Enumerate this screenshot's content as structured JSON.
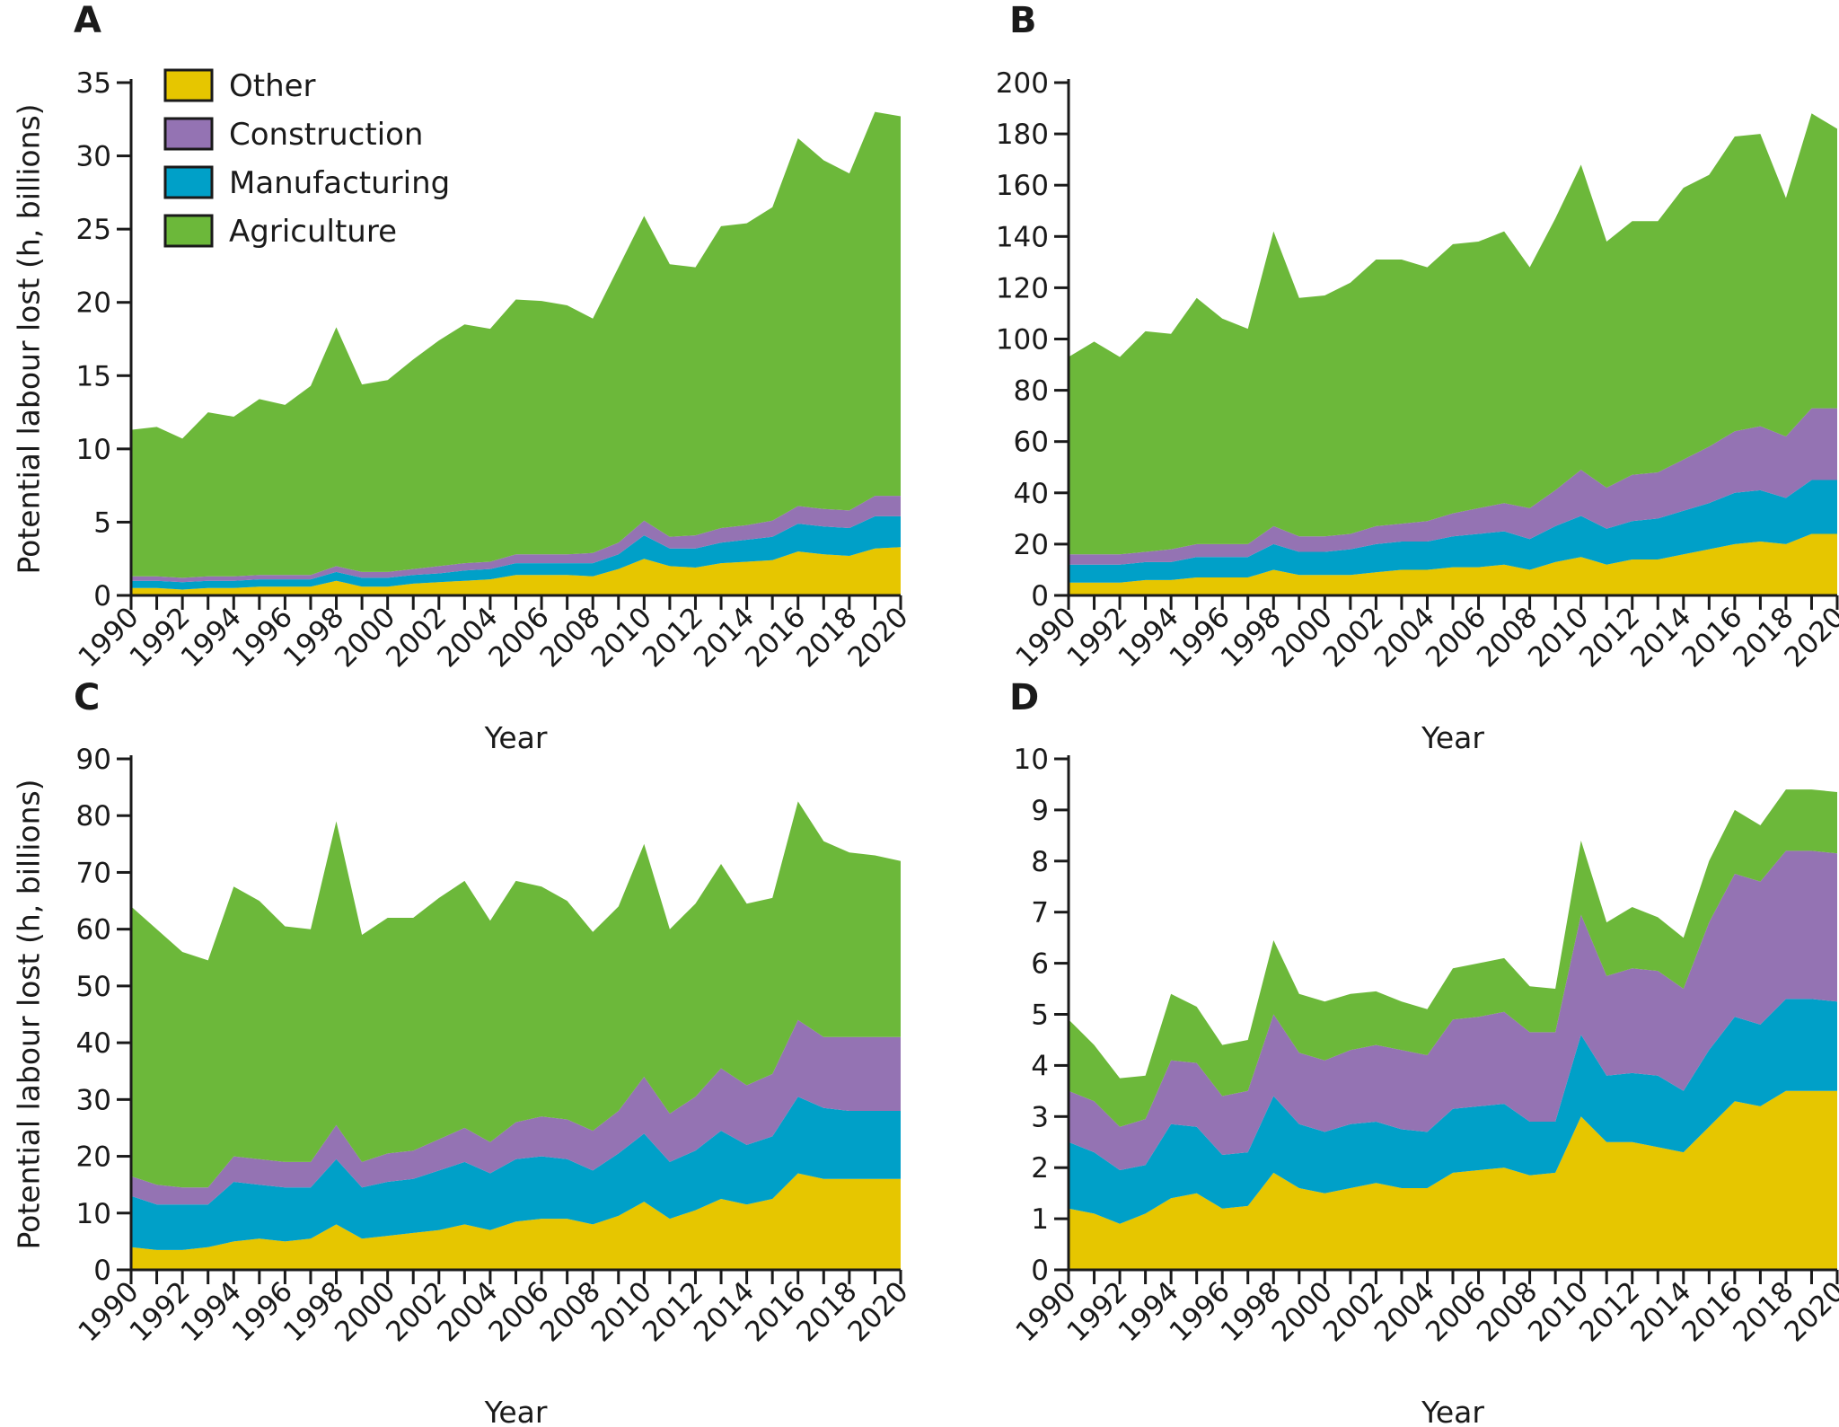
{
  "legend": [
    {
      "key": "other",
      "label": "Other",
      "color": "#e6c600"
    },
    {
      "key": "construction",
      "label": "Construction",
      "color": "#9473b3"
    },
    {
      "key": "manufacturing",
      "label": "Manufacturing",
      "color": "#00a0c8"
    },
    {
      "key": "agriculture",
      "label": "Agriculture",
      "color": "#6cb83a"
    }
  ],
  "xlabel": "Year",
  "ylabel": "Potential labour lost (h, billions)",
  "chart_data": [
    {
      "panel": "A",
      "type": "area",
      "stacked": true,
      "x": [
        1990,
        1991,
        1992,
        1993,
        1994,
        1995,
        1996,
        1997,
        1998,
        1999,
        2000,
        2001,
        2002,
        2003,
        2004,
        2005,
        2006,
        2007,
        2008,
        2009,
        2010,
        2011,
        2012,
        2013,
        2014,
        2015,
        2016,
        2017,
        2018,
        2019,
        2020
      ],
      "xticks": [
        "1990",
        "1992",
        "1994",
        "1996",
        "1998",
        "2000",
        "2002",
        "2004",
        "2006",
        "2008",
        "2010",
        "2012",
        "2014",
        "2016",
        "2018",
        "2020"
      ],
      "ylim": [
        0,
        35
      ],
      "yticks": [
        0,
        5,
        10,
        15,
        20,
        25,
        30,
        35
      ],
      "xlabel": "Year",
      "ylabel": "Potential labour lost (h, billions)",
      "series": [
        {
          "name": "Other",
          "values": [
            0.5,
            0.5,
            0.4,
            0.5,
            0.5,
            0.6,
            0.6,
            0.6,
            1.0,
            0.6,
            0.6,
            0.8,
            0.9,
            1.0,
            1.1,
            1.4,
            1.4,
            1.4,
            1.3,
            1.8,
            2.5,
            2.0,
            1.9,
            2.2,
            2.3,
            2.4,
            3.0,
            2.8,
            2.7,
            3.2,
            3.3
          ]
        },
        {
          "name": "Manufacturing",
          "values": [
            0.5,
            0.5,
            0.5,
            0.5,
            0.5,
            0.5,
            0.5,
            0.5,
            0.6,
            0.6,
            0.6,
            0.6,
            0.6,
            0.7,
            0.7,
            0.8,
            0.8,
            0.8,
            0.9,
            1.0,
            1.6,
            1.2,
            1.3,
            1.4,
            1.5,
            1.6,
            1.9,
            1.9,
            1.9,
            2.2,
            2.1
          ]
        },
        {
          "name": "Construction",
          "values": [
            0.3,
            0.3,
            0.3,
            0.3,
            0.3,
            0.3,
            0.3,
            0.3,
            0.4,
            0.4,
            0.4,
            0.4,
            0.5,
            0.5,
            0.5,
            0.6,
            0.6,
            0.6,
            0.7,
            0.8,
            1.0,
            0.8,
            0.9,
            1.0,
            1.0,
            1.1,
            1.2,
            1.2,
            1.2,
            1.4,
            1.4
          ]
        },
        {
          "name": "Agriculture",
          "values": [
            10.0,
            10.2,
            9.5,
            11.2,
            10.9,
            12.0,
            11.6,
            12.9,
            16.3,
            12.8,
            13.1,
            14.3,
            15.4,
            16.3,
            15.9,
            17.4,
            17.3,
            17.0,
            16.0,
            18.8,
            20.8,
            18.6,
            18.3,
            20.6,
            20.6,
            21.4,
            25.1,
            23.8,
            23.0,
            26.2,
            25.9
          ]
        }
      ]
    },
    {
      "panel": "B",
      "type": "area",
      "stacked": true,
      "x": [
        1990,
        1991,
        1992,
        1993,
        1994,
        1995,
        1996,
        1997,
        1998,
        1999,
        2000,
        2001,
        2002,
        2003,
        2004,
        2005,
        2006,
        2007,
        2008,
        2009,
        2010,
        2011,
        2012,
        2013,
        2014,
        2015,
        2016,
        2017,
        2018,
        2019,
        2020
      ],
      "xticks": [
        "1990",
        "1992",
        "1994",
        "1996",
        "1998",
        "2000",
        "2002",
        "2004",
        "2006",
        "2008",
        "2010",
        "2012",
        "2014",
        "2016",
        "2018",
        "2020"
      ],
      "ylim": [
        0,
        200
      ],
      "yticks": [
        0,
        20,
        40,
        60,
        80,
        100,
        120,
        140,
        160,
        180,
        200
      ],
      "xlabel": "Year",
      "ylabel": "",
      "series": [
        {
          "name": "Other",
          "values": [
            5,
            5,
            5,
            6,
            6,
            7,
            7,
            7,
            10,
            8,
            8,
            8,
            9,
            10,
            10,
            11,
            11,
            12,
            10,
            13,
            15,
            12,
            14,
            14,
            16,
            18,
            20,
            21,
            20,
            24,
            24
          ]
        },
        {
          "name": "Manufacturing",
          "values": [
            7,
            7,
            7,
            7,
            7,
            8,
            8,
            8,
            10,
            9,
            9,
            10,
            11,
            11,
            11,
            12,
            13,
            13,
            12,
            14,
            16,
            14,
            15,
            16,
            17,
            18,
            20,
            20,
            18,
            21,
            21
          ]
        },
        {
          "name": "Construction",
          "values": [
            4,
            4,
            4,
            4,
            5,
            5,
            5,
            5,
            7,
            6,
            6,
            6,
            7,
            7,
            8,
            9,
            10,
            11,
            12,
            14,
            18,
            16,
            18,
            18,
            20,
            22,
            24,
            25,
            24,
            28,
            28
          ]
        },
        {
          "name": "Agriculture",
          "values": [
            77,
            83,
            77,
            86,
            84,
            96,
            88,
            84,
            115,
            93,
            94,
            98,
            104,
            103,
            99,
            105,
            104,
            106,
            94,
            106,
            119,
            96,
            99,
            98,
            106,
            106,
            115,
            114,
            93,
            115,
            109
          ]
        }
      ]
    },
    {
      "panel": "C",
      "type": "area",
      "stacked": true,
      "x": [
        1990,
        1991,
        1992,
        1993,
        1994,
        1995,
        1996,
        1997,
        1998,
        1999,
        2000,
        2001,
        2002,
        2003,
        2004,
        2005,
        2006,
        2007,
        2008,
        2009,
        2010,
        2011,
        2012,
        2013,
        2014,
        2015,
        2016,
        2017,
        2018,
        2019,
        2020
      ],
      "xticks": [
        "1990",
        "1992",
        "1994",
        "1996",
        "1998",
        "2000",
        "2002",
        "2004",
        "2006",
        "2008",
        "2010",
        "2012",
        "2014",
        "2016",
        "2018",
        "2020"
      ],
      "ylim": [
        0,
        90
      ],
      "yticks": [
        0,
        10,
        20,
        30,
        40,
        50,
        60,
        70,
        80,
        90
      ],
      "xlabel": "Year",
      "ylabel": "Potential labour lost (h, billions)",
      "series": [
        {
          "name": "Other",
          "values": [
            4,
            3.5,
            3.5,
            4,
            5,
            5.5,
            5,
            5.5,
            8,
            5.5,
            6,
            6.5,
            7,
            8,
            7,
            8.5,
            9,
            9,
            8,
            9.5,
            12,
            9,
            10.5,
            12.5,
            11.5,
            12.5,
            17,
            16,
            16,
            16,
            16
          ]
        },
        {
          "name": "Manufacturing",
          "values": [
            9,
            8,
            8,
            7.5,
            10.5,
            9.5,
            9.5,
            9,
            11.5,
            9,
            9.5,
            9.5,
            10.5,
            11,
            10,
            11,
            11,
            10.5,
            9.5,
            11,
            12,
            10,
            10.5,
            12,
            10.5,
            11,
            13.5,
            12.5,
            12,
            12,
            12
          ]
        },
        {
          "name": "Construction",
          "values": [
            3.5,
            3.5,
            3,
            3,
            4.5,
            4.5,
            4.5,
            4.5,
            6,
            4.5,
            5,
            5,
            5.5,
            6,
            5.5,
            6.5,
            7,
            7,
            7,
            7.5,
            10,
            8.5,
            9.5,
            11,
            10.5,
            11,
            13.5,
            12.5,
            13,
            13,
            13
          ]
        },
        {
          "name": "Agriculture",
          "values": [
            47.5,
            45,
            41.5,
            40,
            47.5,
            45.5,
            41.5,
            41,
            53.5,
            40,
            41.5,
            41,
            42.5,
            43.5,
            39,
            42.5,
            40.5,
            38.5,
            35,
            36,
            41,
            32.5,
            34,
            36,
            32,
            31,
            38.5,
            34.5,
            32.5,
            32,
            31
          ]
        }
      ]
    },
    {
      "panel": "D",
      "type": "area",
      "stacked": true,
      "x": [
        1990,
        1991,
        1992,
        1993,
        1994,
        1995,
        1996,
        1997,
        1998,
        1999,
        2000,
        2001,
        2002,
        2003,
        2004,
        2005,
        2006,
        2007,
        2008,
        2009,
        2010,
        2011,
        2012,
        2013,
        2014,
        2015,
        2016,
        2017,
        2018,
        2019,
        2020
      ],
      "xticks": [
        "1990",
        "1992",
        "1994",
        "1996",
        "1998",
        "2000",
        "2002",
        "2004",
        "2006",
        "2008",
        "2010",
        "2012",
        "2014",
        "2016",
        "2018",
        "2020"
      ],
      "ylim": [
        0,
        10
      ],
      "yticks": [
        0,
        1,
        2,
        3,
        4,
        5,
        6,
        7,
        8,
        9,
        10
      ],
      "xlabel": "Year",
      "ylabel": "",
      "series": [
        {
          "name": "Other",
          "values": [
            1.2,
            1.1,
            0.9,
            1.1,
            1.4,
            1.5,
            1.2,
            1.25,
            1.9,
            1.6,
            1.5,
            1.6,
            1.7,
            1.6,
            1.6,
            1.9,
            1.95,
            2.0,
            1.85,
            1.9,
            3.0,
            2.5,
            2.5,
            2.4,
            2.3,
            2.8,
            3.3,
            3.2,
            3.5,
            3.5,
            3.5
          ]
        },
        {
          "name": "Manufacturing",
          "values": [
            1.3,
            1.2,
            1.05,
            0.95,
            1.45,
            1.3,
            1.05,
            1.05,
            1.5,
            1.25,
            1.2,
            1.25,
            1.2,
            1.15,
            1.1,
            1.25,
            1.25,
            1.25,
            1.05,
            1.0,
            1.6,
            1.3,
            1.35,
            1.4,
            1.2,
            1.5,
            1.65,
            1.6,
            1.8,
            1.8,
            1.75
          ]
        },
        {
          "name": "Construction",
          "values": [
            1.0,
            1.0,
            0.85,
            0.9,
            1.25,
            1.25,
            1.15,
            1.2,
            1.6,
            1.4,
            1.4,
            1.45,
            1.5,
            1.55,
            1.5,
            1.75,
            1.75,
            1.8,
            1.75,
            1.75,
            2.35,
            1.95,
            2.05,
            2.05,
            2.0,
            2.5,
            2.8,
            2.8,
            2.9,
            2.9,
            2.9
          ]
        },
        {
          "name": "Agriculture",
          "values": [
            1.4,
            1.1,
            0.95,
            0.85,
            1.3,
            1.1,
            1.0,
            1.0,
            1.45,
            1.15,
            1.15,
            1.1,
            1.05,
            0.95,
            0.9,
            1.0,
            1.05,
            1.05,
            0.9,
            0.85,
            1.45,
            1.05,
            1.2,
            1.05,
            1.0,
            1.2,
            1.25,
            1.1,
            1.2,
            1.2,
            1.2
          ]
        }
      ]
    }
  ]
}
